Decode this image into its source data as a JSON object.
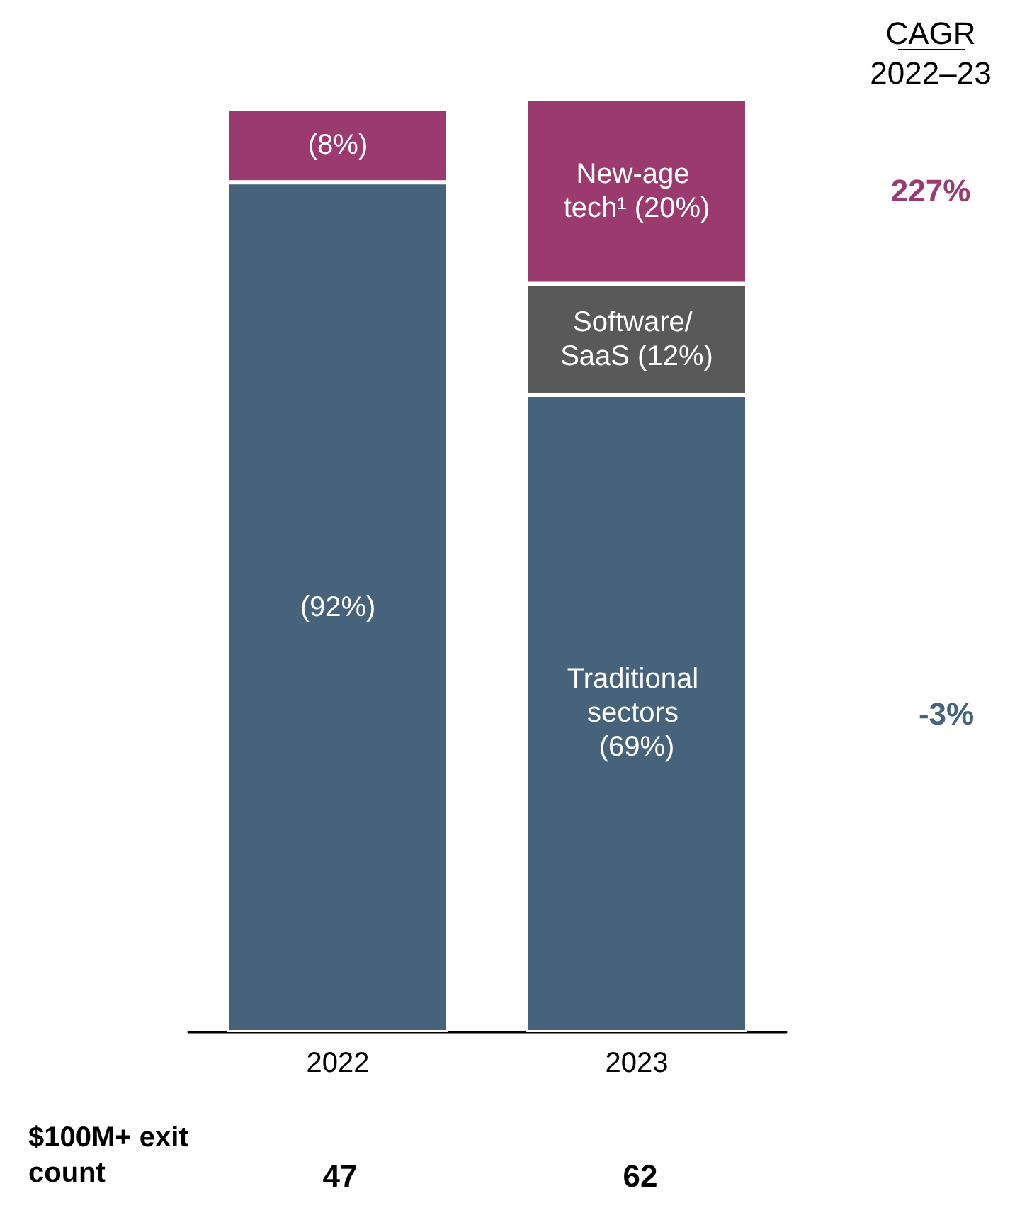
{
  "chart_data": {
    "type": "bar",
    "stacked": true,
    "legend": false,
    "grid": false,
    "categories": [
      "2022",
      "2023"
    ],
    "series": [
      {
        "name": "Traditional sectors",
        "color": "#46637b",
        "values": [
          92,
          69
        ],
        "value_labels": [
          "(92%)",
          "(69%)"
        ]
      },
      {
        "name": "Software/ SaaS",
        "color": "#595959",
        "values": [
          null,
          12
        ],
        "value_labels": [
          null,
          "(12%)"
        ]
      },
      {
        "name": "New-age tech¹",
        "color": "#9b3a6e",
        "values": [
          8,
          20
        ],
        "value_labels": [
          "(8%)",
          "(20%)"
        ]
      }
    ],
    "annotations": [
      "CAGR",
      "2022–23",
      "227%",
      "-3%",
      "$100M+ exit count",
      "47",
      "62"
    ]
  }
}
